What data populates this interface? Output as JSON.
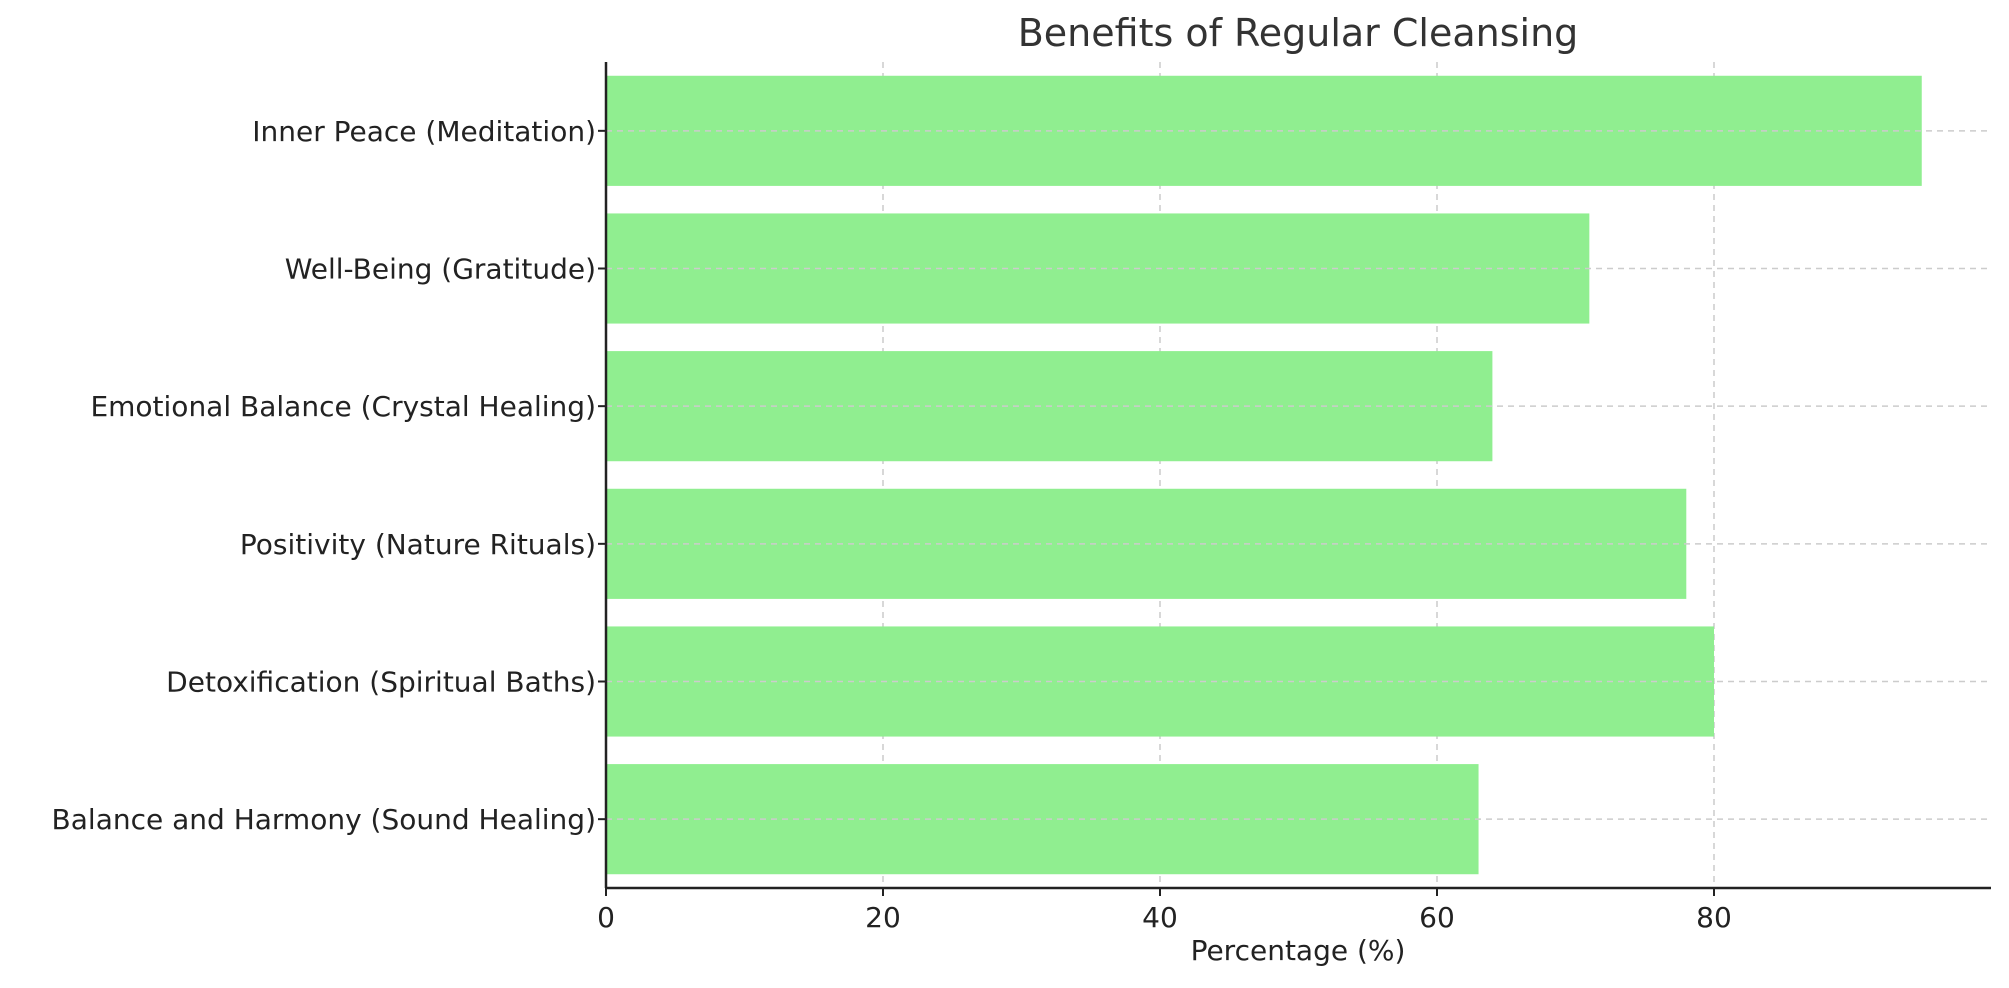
{
  "chart_data": {
    "type": "bar",
    "orientation": "horizontal",
    "title": "Benefits of Regular Cleansing",
    "xlabel": "Percentage (%)",
    "ylabel": "",
    "categories": [
      "Inner Peace (Meditation)",
      "Well-Being (Gratitude)",
      "Emotional Balance (Crystal Healing)",
      "Positivity (Nature Rituals)",
      "Detoxification (Spiritual Baths)",
      "Balance and Harmony (Sound Healing)"
    ],
    "values": [
      95,
      71,
      64,
      78,
      80,
      63
    ],
    "xlim": [
      0,
      100
    ],
    "xticks": [
      0,
      20,
      40,
      60,
      80
    ],
    "grid": true,
    "bar_color": "#90EE90",
    "grid_color": "#cccccc",
    "axis_color": "#222222",
    "title_color": "#333333",
    "text_color": "#222222"
  }
}
